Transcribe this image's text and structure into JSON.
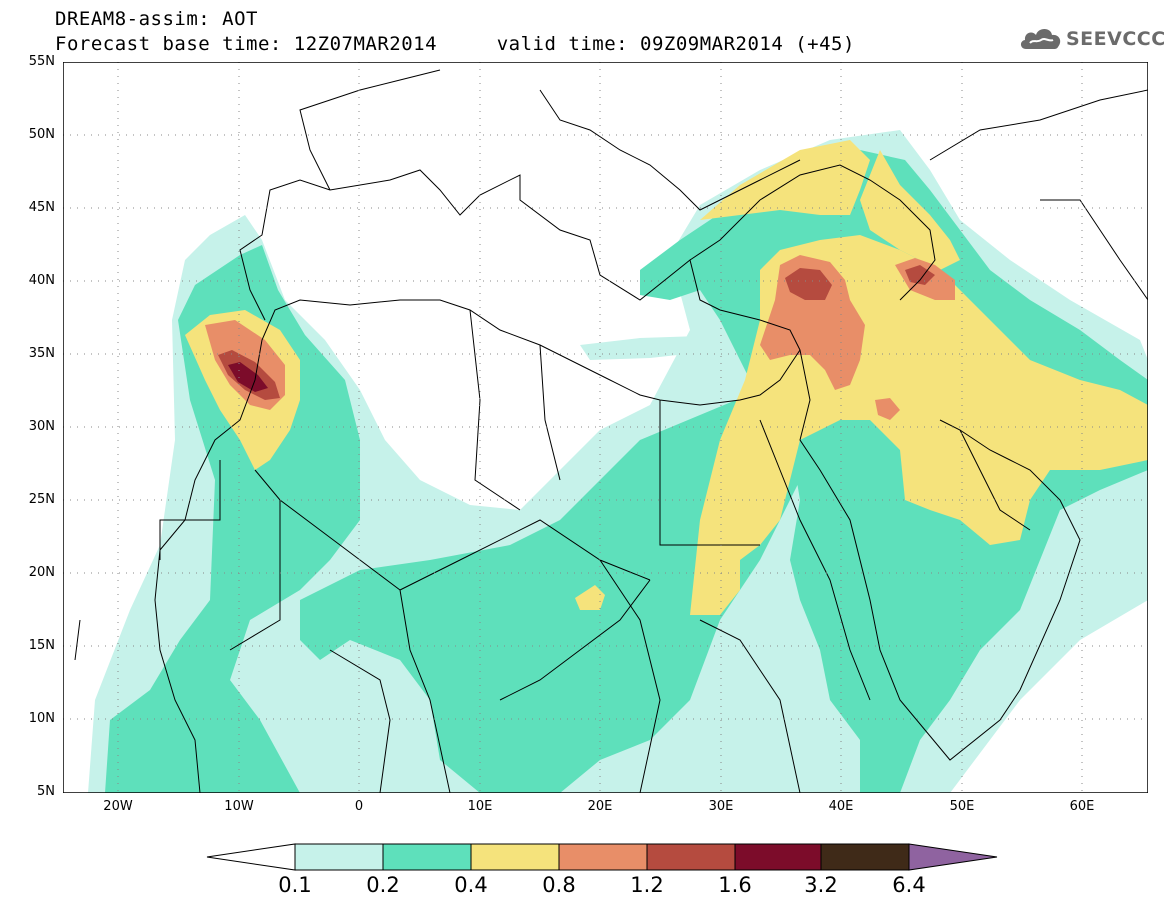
{
  "title": {
    "line1": "DREAM8-assim: AOT",
    "line2": "Forecast base time: 12Z07MAR2014     valid time: 09Z09MAR2014 (+45)"
  },
  "logo": {
    "text": "SEEVCCC",
    "icon": "cloud-icon"
  },
  "map": {
    "lat_labels": [
      "55N",
      "50N",
      "45N",
      "40N",
      "35N",
      "30N",
      "25N",
      "20N",
      "15N",
      "10N",
      "5N"
    ],
    "lon_labels": [
      "20W",
      "10W",
      "0",
      "10E",
      "20E",
      "30E",
      "40E",
      "50E",
      "60E"
    ],
    "lon_range": [
      -25,
      65
    ],
    "lat_range": [
      5,
      55
    ],
    "graticule": "dotted"
  },
  "colorbar": {
    "labels": [
      "0.1",
      "0.2",
      "0.4",
      "0.8",
      "1.2",
      "1.6",
      "3.2",
      "6.4"
    ],
    "colors": [
      "#ffffff",
      "#c6f2ea",
      "#5ee0bb",
      "#f5e37c",
      "#e88e68",
      "#b54b3f",
      "#7c0c2a",
      "#3f2a18",
      "#8f63a0"
    ]
  }
}
